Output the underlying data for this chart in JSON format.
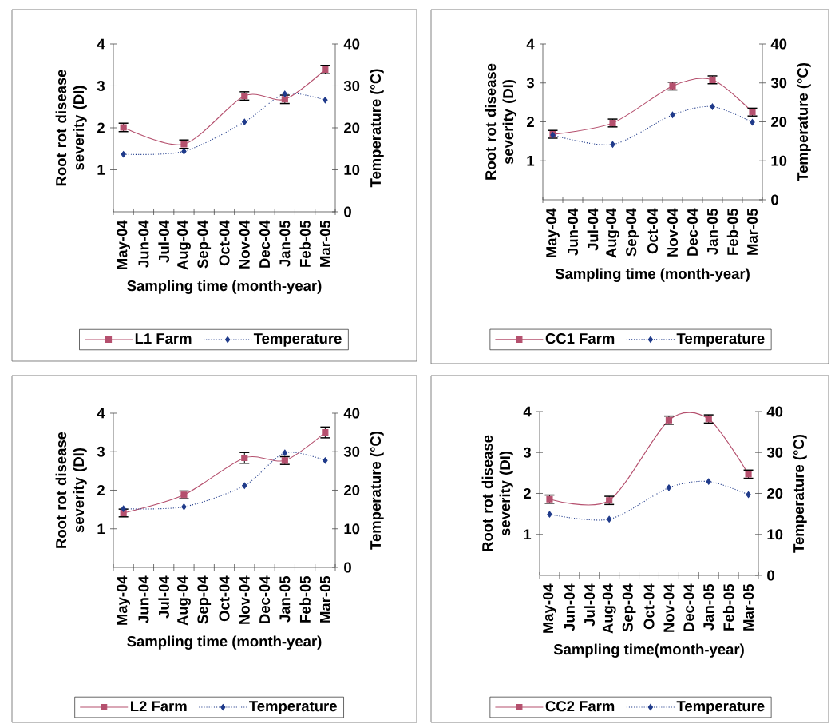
{
  "chart_data": [
    {
      "type": "line",
      "categories": [
        "May-04",
        "Jun-04",
        "Jul-04",
        "Aug-04",
        "Sep-04",
        "Oct-04",
        "Nov-04",
        "Dec-04",
        "Jan-05",
        "Feb-05",
        "Mar-05"
      ],
      "xlabel": "Sampling time (month-year)",
      "ylabel": "Root rot disease severity (DI)",
      "y2label": "Temperature (°C)",
      "ylim": [
        0,
        4
      ],
      "yticks": [
        1,
        2,
        3,
        4
      ],
      "y2lim": [
        0,
        40
      ],
      "y2ticks": [
        0,
        10,
        20,
        30,
        40
      ],
      "legend": "bottom",
      "series": [
        {
          "name": "L1 Farm",
          "color": "#b5506e",
          "marker": "square",
          "line_style": "solid",
          "values": [
            2.01,
            null,
            null,
            1.61,
            null,
            null,
            2.76,
            null,
            2.68,
            null,
            3.39
          ],
          "errors": [
            0.1,
            null,
            null,
            0.1,
            null,
            null,
            0.1,
            null,
            0.1,
            null,
            0.1
          ]
        },
        {
          "name": "Temperature",
          "color": "#1f3a8a",
          "marker": "diamond",
          "line_style": "dotted",
          "axis": "y2",
          "values": [
            13.7,
            null,
            null,
            14.4,
            null,
            null,
            21.4,
            null,
            28.1,
            null,
            26.6
          ]
        }
      ]
    },
    {
      "type": "line",
      "categories": [
        "May-04",
        "Jun-04",
        "Jul-04",
        "Aug-04",
        "Sep-04",
        "Oct-04",
        "Nov-04",
        "Dec-04",
        "Jan-05",
        "Feb-05",
        "Mar-05"
      ],
      "xlabel": "Sampling time (month-year)",
      "ylabel": "Root rot disease severity (DI)",
      "y2label": "Temperature (°C)",
      "ylim": [
        0,
        4
      ],
      "yticks": [
        1,
        2,
        3,
        4
      ],
      "y2lim": [
        0,
        40
      ],
      "y2ticks": [
        0,
        10,
        20,
        30,
        40
      ],
      "legend": "bottom",
      "series": [
        {
          "name": "CC1 Farm",
          "color": "#b5506e",
          "marker": "square",
          "line_style": "solid",
          "values": [
            1.68,
            null,
            null,
            1.97,
            null,
            null,
            2.92,
            null,
            3.08,
            null,
            2.25
          ],
          "errors": [
            0.1,
            null,
            null,
            0.1,
            null,
            null,
            0.1,
            null,
            0.1,
            null,
            0.1
          ]
        },
        {
          "name": "Temperature",
          "color": "#1f3a8a",
          "marker": "diamond",
          "line_style": "dotted",
          "axis": "y2",
          "values": [
            16.6,
            null,
            null,
            14.2,
            null,
            null,
            21.8,
            null,
            23.9,
            null,
            19.9
          ]
        }
      ]
    },
    {
      "type": "line",
      "categories": [
        "May-04",
        "Jun-04",
        "Jul-04",
        "Aug-04",
        "Sep-04",
        "Oct-04",
        "Nov-04",
        "Dec-04",
        "Jan-05",
        "Feb-05",
        "Mar-05"
      ],
      "xlabel": "Sampling time (month-year)",
      "ylabel": "Root rot disease severity (DI)",
      "y2label": "Temperature (°C)",
      "ylim": [
        0,
        4
      ],
      "yticks": [
        1,
        2,
        3,
        4
      ],
      "y2lim": [
        0,
        40
      ],
      "y2ticks": [
        0,
        10,
        20,
        30,
        40
      ],
      "legend": "bottom",
      "series": [
        {
          "name": "L2 Farm",
          "color": "#b5506e",
          "marker": "square",
          "line_style": "solid",
          "values": [
            1.41,
            null,
            null,
            1.88,
            null,
            null,
            2.84,
            null,
            2.77,
            null,
            3.5
          ],
          "errors": [
            0.1,
            null,
            null,
            0.1,
            null,
            null,
            0.14,
            null,
            0.1,
            null,
            0.14
          ]
        },
        {
          "name": "Temperature",
          "color": "#1f3a8a",
          "marker": "diamond",
          "line_style": "dotted",
          "axis": "y2",
          "values": [
            15.2,
            null,
            null,
            15.7,
            null,
            null,
            21.2,
            null,
            29.7,
            null,
            27.7
          ]
        }
      ]
    },
    {
      "type": "line",
      "categories": [
        "May-04",
        "Jun-04",
        "Jul-04",
        "Aug-04",
        "Sep-04",
        "Oct-04",
        "Nov-04",
        "Dec-04",
        "Jan-05",
        "Feb-05",
        "Mar-05"
      ],
      "xlabel": "Sampling time(month-year)",
      "ylabel": "Root rot disease severity (DI)",
      "y2label": "Temperature (°C)",
      "ylim": [
        0,
        4
      ],
      "yticks": [
        1,
        2,
        3,
        4
      ],
      "y2lim": [
        0,
        40
      ],
      "y2ticks": [
        0,
        10,
        20,
        30,
        40
      ],
      "legend": "bottom",
      "series": [
        {
          "name": "CC2 Farm",
          "color": "#b5506e",
          "marker": "square",
          "line_style": "solid",
          "values": [
            1.86,
            null,
            null,
            1.83,
            null,
            null,
            3.79,
            null,
            3.82,
            null,
            2.47
          ],
          "errors": [
            0.1,
            null,
            null,
            0.1,
            null,
            null,
            0.1,
            null,
            0.1,
            null,
            0.1
          ]
        },
        {
          "name": "Temperature",
          "color": "#1f3a8a",
          "marker": "diamond",
          "line_style": "dotted",
          "axis": "y2",
          "values": [
            14.9,
            null,
            null,
            13.7,
            null,
            null,
            21.4,
            null,
            22.9,
            null,
            19.7
          ]
        }
      ]
    }
  ]
}
